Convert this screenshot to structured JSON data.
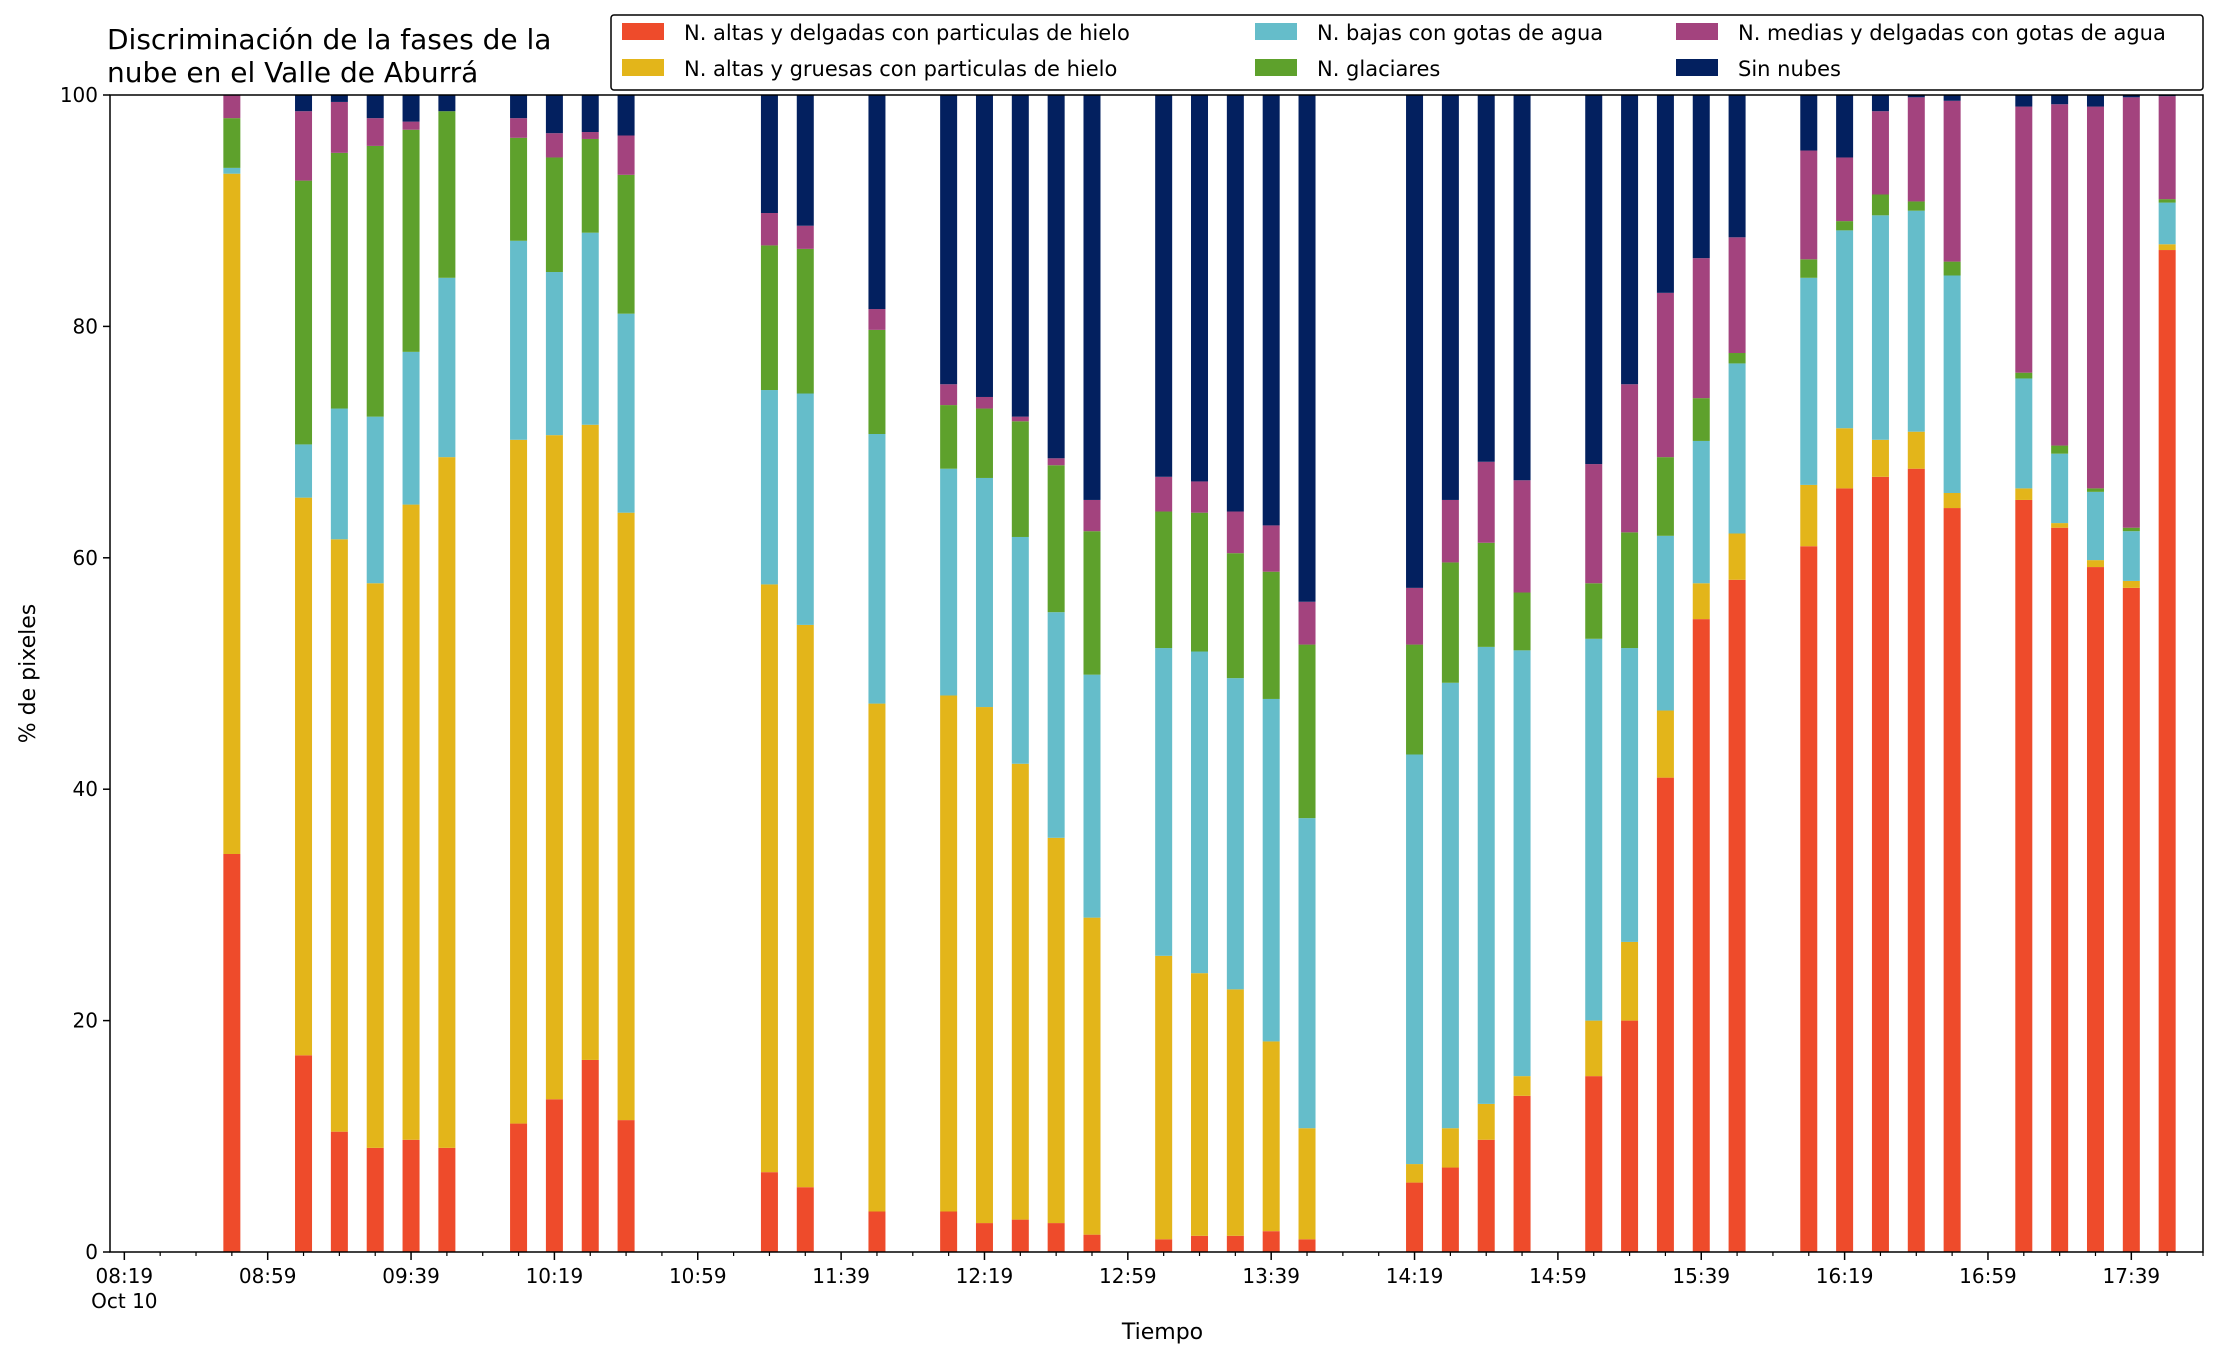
{
  "chart_data": {
    "type": "bar",
    "stacked": true,
    "title": "Discriminación de la fases de la nube en el Valle de Aburrá",
    "title_lines": [
      "Discriminación de la fases de la",
      "nube en el Valle de Aburrá"
    ],
    "xlabel": "Tiempo",
    "ylabel": "% de pixeles",
    "ylim": [
      0,
      100
    ],
    "yticks": [
      0,
      20,
      40,
      60,
      80,
      100
    ],
    "xlim_minutes": [
      -4,
      580
    ],
    "x_ticks": [
      {
        "label": "08:19",
        "sublabel": "Oct 10",
        "minute": 0
      },
      {
        "label": "08:59",
        "minute": 40
      },
      {
        "label": "09:39",
        "minute": 80
      },
      {
        "label": "10:19",
        "minute": 120
      },
      {
        "label": "10:59",
        "minute": 160
      },
      {
        "label": "11:39",
        "minute": 200
      },
      {
        "label": "12:19",
        "minute": 240
      },
      {
        "label": "12:59",
        "minute": 280
      },
      {
        "label": "13:39",
        "minute": 320
      },
      {
        "label": "14:19",
        "minute": 360
      },
      {
        "label": "14:59",
        "minute": 400
      },
      {
        "label": "15:39",
        "minute": 440
      },
      {
        "label": "16:19",
        "minute": 480
      },
      {
        "label": "16:59",
        "minute": 520
      },
      {
        "label": "17:39",
        "minute": 560
      }
    ],
    "grid": false,
    "legend_position": "top-right",
    "x_minutes": [
      30,
      50,
      60,
      70,
      80,
      90,
      110,
      120,
      130,
      140,
      180,
      190,
      210,
      230,
      240,
      250,
      260,
      270,
      290,
      300,
      310,
      320,
      330,
      360,
      370,
      380,
      390,
      410,
      420,
      430,
      440,
      450,
      470,
      480,
      490,
      500,
      510,
      530,
      540,
      550,
      560,
      570
    ],
    "series": [
      {
        "name": "N. altas y delgadas con particulas de hielo",
        "color": "#ee4b2b",
        "values": [
          34.4,
          17.0,
          10.4,
          9.0,
          9.7,
          9.0,
          11.1,
          13.2,
          16.6,
          11.4,
          6.9,
          5.6,
          3.5,
          3.5,
          2.5,
          2.8,
          2.5,
          1.5,
          1.1,
          1.4,
          1.4,
          1.8,
          1.1,
          6.0,
          7.3,
          9.7,
          13.5,
          15.2,
          20.0,
          41.0,
          54.7,
          58.1,
          61.0,
          66.0,
          67.0,
          67.7,
          64.3,
          65.0,
          62.6,
          59.2,
          57.4,
          86.6
        ]
      },
      {
        "name": "N. altas y gruesas con particulas de hielo",
        "color": "#e3b51a",
        "values": [
          58.8,
          48.2,
          51.2,
          48.8,
          54.9,
          59.7,
          59.1,
          57.4,
          54.9,
          52.5,
          50.8,
          48.6,
          43.9,
          44.6,
          44.6,
          39.4,
          33.3,
          27.4,
          24.5,
          22.7,
          21.3,
          16.4,
          9.6,
          1.6,
          3.4,
          3.1,
          1.7,
          4.8,
          6.8,
          5.8,
          3.1,
          4.0,
          5.3,
          5.2,
          3.2,
          3.2,
          1.3,
          1.0,
          0.4,
          0.6,
          0.6,
          0.5
        ]
      },
      {
        "name": "N. bajas con gotas de agua",
        "color": "#65bdca",
        "values": [
          0.5,
          4.6,
          11.3,
          14.4,
          13.2,
          15.5,
          17.2,
          14.1,
          16.6,
          17.2,
          16.8,
          20.0,
          23.3,
          19.6,
          19.8,
          19.6,
          19.5,
          21.0,
          26.6,
          27.8,
          26.9,
          29.6,
          26.8,
          35.4,
          38.5,
          39.5,
          36.8,
          33.0,
          25.4,
          15.1,
          12.3,
          14.7,
          17.9,
          17.1,
          19.4,
          19.1,
          18.8,
          9.5,
          6.0,
          5.9,
          4.3,
          3.6
        ]
      },
      {
        "name": "N. glaciares",
        "color": "#5ea12c",
        "values": [
          4.3,
          22.8,
          22.1,
          23.4,
          19.2,
          14.4,
          8.9,
          9.9,
          8.1,
          12.0,
          12.5,
          12.5,
          9.0,
          5.5,
          6.0,
          10.0,
          12.7,
          12.4,
          11.8,
          12.0,
          10.8,
          11.0,
          15.0,
          9.5,
          10.4,
          9.0,
          5.0,
          4.8,
          10.0,
          6.8,
          3.7,
          0.9,
          1.6,
          0.8,
          1.8,
          0.8,
          1.2,
          0.5,
          0.7,
          0.3,
          0.3,
          0.3
        ]
      },
      {
        "name": "N. medias y delgadas con gotas de agua",
        "color": "#a3437e",
        "values": [
          2.0,
          6.0,
          4.4,
          2.4,
          0.7,
          0.0,
          1.7,
          2.1,
          0.6,
          3.4,
          2.8,
          2.0,
          1.8,
          1.8,
          1.0,
          0.4,
          0.6,
          2.7,
          3.0,
          2.7,
          3.6,
          4.0,
          3.7,
          4.9,
          5.4,
          7.0,
          9.7,
          10.3,
          12.8,
          14.2,
          12.1,
          10.0,
          9.4,
          5.5,
          7.2,
          9.0,
          13.9,
          23.0,
          29.5,
          33.0,
          37.2,
          8.9
        ]
      },
      {
        "name": "Sin nubes",
        "color": "#03205f",
        "values": [
          0.0,
          1.4,
          0.6,
          2.0,
          2.3,
          1.4,
          2.0,
          3.3,
          3.2,
          3.5,
          10.2,
          11.3,
          18.5,
          25.0,
          26.1,
          27.8,
          31.4,
          35.0,
          33.0,
          33.4,
          36.0,
          37.2,
          43.8,
          42.6,
          35.0,
          31.7,
          33.3,
          31.9,
          25.0,
          17.1,
          14.1,
          12.3,
          4.8,
          5.4,
          1.4,
          0.2,
          0.5,
          1.0,
          0.8,
          1.0,
          0.2,
          0.1
        ]
      }
    ],
    "legend_order": [
      0,
      1,
      2,
      3,
      4,
      5
    ]
  }
}
